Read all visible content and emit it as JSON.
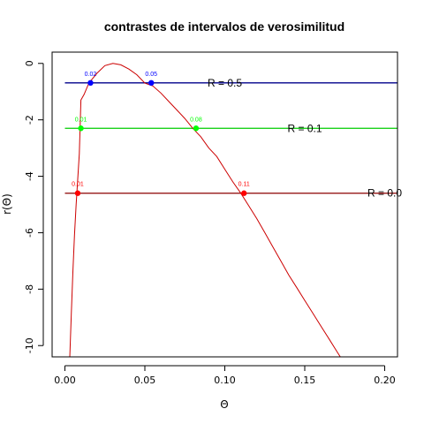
{
  "chart_data": {
    "type": "line",
    "title": "contrastes de intervalos de verosimilitud",
    "xlabel": "Θ",
    "ylabel": "r(Θ)",
    "xlim": [
      -0.008,
      0.208
    ],
    "ylim": [
      -10.4,
      0.4
    ],
    "xticks": [
      0.0,
      0.05,
      0.1,
      0.15,
      0.2
    ],
    "xtick_labels": [
      "0.00",
      "0.05",
      "0.10",
      "0.15",
      "0.20"
    ],
    "yticks": [
      0,
      -2,
      -4,
      -6,
      -8,
      -10
    ],
    "ytick_labels": [
      "0",
      "-2",
      "-4",
      "-6",
      "-8",
      "-10"
    ],
    "grid": false,
    "colors": {
      "curve": "#cc0000",
      "axis": "#000000"
    },
    "curve": {
      "x": [
        0.003,
        0.004,
        0.005,
        0.006,
        0.007,
        0.008,
        0.009,
        0.01,
        0.012,
        0.015,
        0.02,
        0.025,
        0.03,
        0.035,
        0.04,
        0.045,
        0.05,
        0.055,
        0.06,
        0.065,
        0.07,
        0.075,
        0.08,
        0.085,
        0.09,
        0.095,
        0.1,
        0.105,
        0.11,
        0.115,
        0.12,
        0.125,
        0.13,
        0.135,
        0.14,
        0.145,
        0.15,
        0.155,
        0.16,
        0.165,
        0.17,
        0.175
      ],
      "y": [
        -10.5,
        -8.9,
        -7.4,
        -6.1,
        -5.0,
        -4.1,
        -3.2,
        -1.3,
        -1.1,
        -0.7,
        -0.35,
        -0.08,
        0.0,
        -0.05,
        -0.2,
        -0.4,
        -0.7,
        -0.8,
        -1.05,
        -1.35,
        -1.65,
        -1.95,
        -2.3,
        -2.6,
        -3.0,
        -3.3,
        -3.75,
        -4.2,
        -4.6,
        -5.05,
        -5.5,
        -6.0,
        -6.5,
        -7.0,
        -7.5,
        -7.95,
        -8.4,
        -8.85,
        -9.3,
        -9.75,
        -10.2,
        -10.65
      ]
    },
    "levels": [
      {
        "label": "R = 0.5",
        "y": -0.69,
        "color": "#00008b",
        "point_color": "#0000ff",
        "label_x": 0.1,
        "points": [
          {
            "x": 0.016,
            "label": "0.02"
          },
          {
            "x": 0.054,
            "label": "0.05"
          }
        ]
      },
      {
        "label": "R = 0.1",
        "y": -2.3,
        "color": "#00cd00",
        "point_color": "#00ff00",
        "label_x": 0.15,
        "points": [
          {
            "x": 0.01,
            "label": "0.01"
          },
          {
            "x": 0.082,
            "label": "0.08"
          }
        ]
      },
      {
        "label": "R = 0.0",
        "y": -4.6,
        "color": "#8b0000",
        "point_color": "#ff0000",
        "label_x": 0.2,
        "points": [
          {
            "x": 0.008,
            "label": "0.01"
          },
          {
            "x": 0.112,
            "label": "0.11"
          }
        ]
      }
    ]
  }
}
